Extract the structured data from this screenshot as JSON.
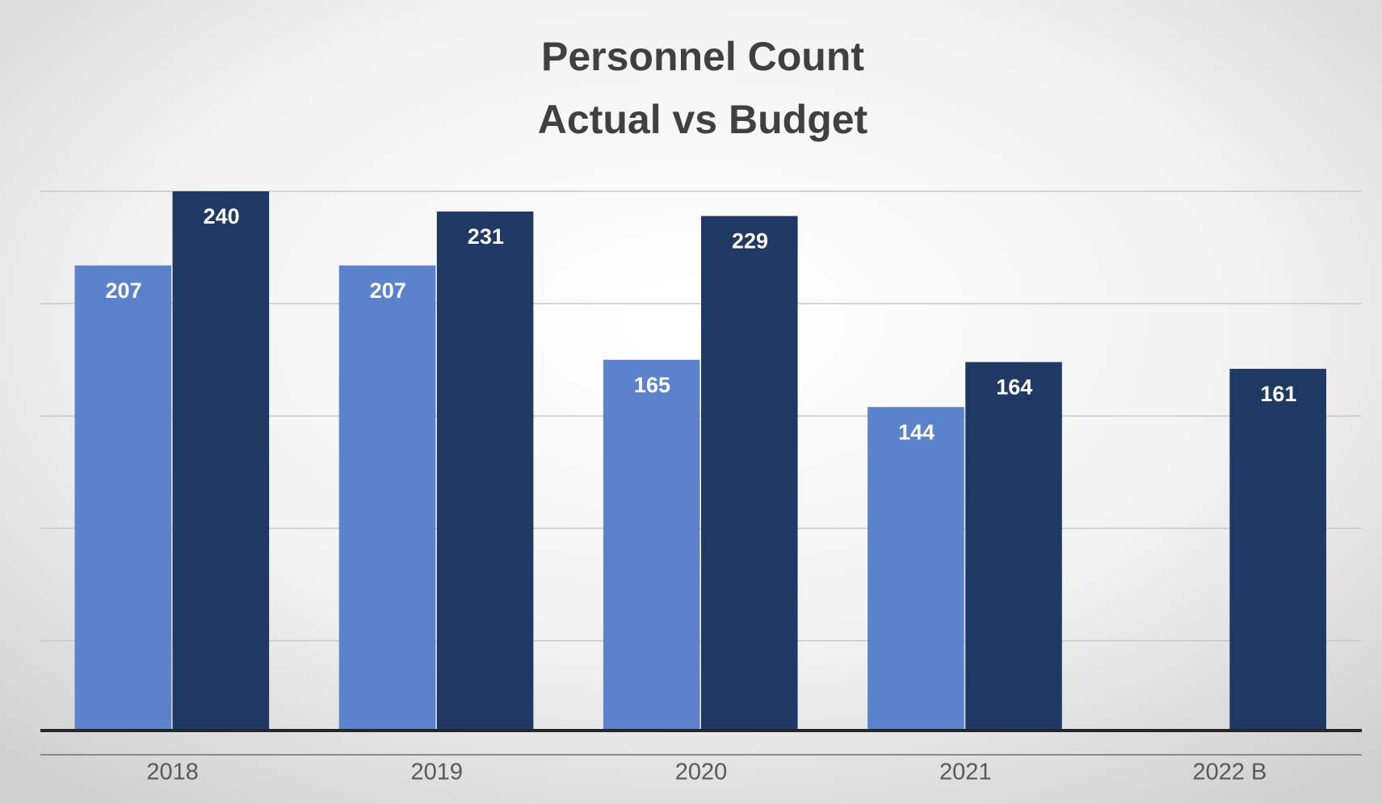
{
  "chart_data": {
    "type": "bar",
    "title": [
      "Personnel Count",
      "Actual vs Budget"
    ],
    "categories": [
      "2018",
      "2019",
      "2020",
      "2021",
      "2022 B"
    ],
    "series": [
      {
        "color": "#5b83cb",
        "values": [
          207,
          207,
          165,
          144,
          null
        ]
      },
      {
        "color": "#1f3864",
        "values": [
          240,
          231,
          229,
          164,
          161
        ]
      }
    ],
    "ylim": [
      0,
      240
    ],
    "yticks": [
      40,
      90,
      140,
      190,
      240
    ],
    "grid": true
  }
}
